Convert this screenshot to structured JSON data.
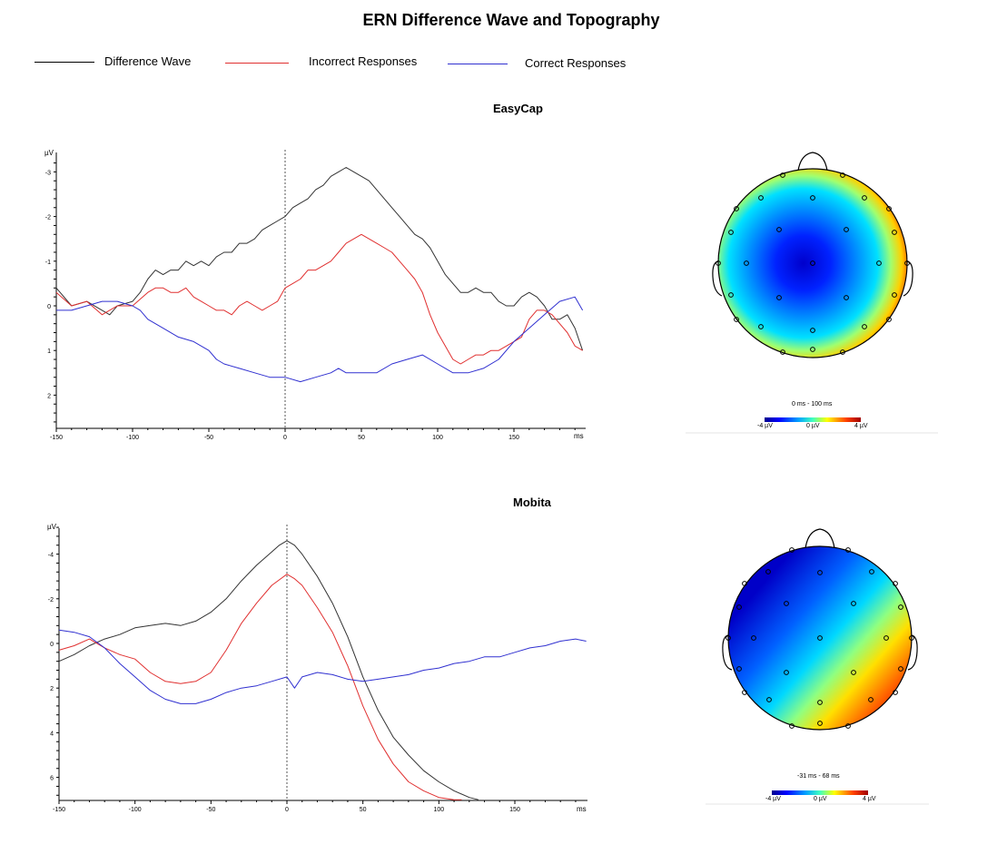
{
  "title": "ERN Difference Wave and Topography",
  "legend": [
    {
      "label": "Difference Wave",
      "color": "#000000"
    },
    {
      "label": "Incorrect Responses",
      "color": "#e03030"
    },
    {
      "label": "Correct Responses",
      "color": "#3030d0"
    }
  ],
  "chart_data": [
    {
      "type": "line",
      "title": "EasyCap",
      "ylabel": "µV",
      "xlabel": "ms",
      "xlim": [
        -150,
        197
      ],
      "ylim": [
        2.8,
        -3.3
      ],
      "y_axis_inverted": true,
      "x_ticks": [
        "-150",
        "-100",
        "-50",
        "0",
        "50",
        "100",
        "150"
      ],
      "y_ticks": [
        "-3",
        "-2",
        "-1",
        "0",
        "1",
        "2"
      ],
      "event_marker_x": 0,
      "series": [
        {
          "name": "Difference Wave",
          "color": "#333333",
          "x": [
            -150,
            -140,
            -130,
            -120,
            -115,
            -110,
            -100,
            -95,
            -90,
            -85,
            -80,
            -75,
            -70,
            -65,
            -60,
            -55,
            -50,
            -45,
            -40,
            -35,
            -30,
            -25,
            -20,
            -15,
            -10,
            -5,
            0,
            5,
            10,
            15,
            20,
            25,
            30,
            35,
            40,
            45,
            50,
            55,
            60,
            65,
            70,
            75,
            80,
            85,
            90,
            95,
            100,
            105,
            110,
            115,
            120,
            125,
            130,
            135,
            140,
            145,
            150,
            155,
            160,
            165,
            170,
            175,
            180,
            185,
            190,
            195
          ],
          "y": [
            -0.4,
            0,
            -0.1,
            0.1,
            0.2,
            0,
            -0.1,
            -0.3,
            -0.6,
            -0.8,
            -0.7,
            -0.8,
            -0.8,
            -1.0,
            -0.9,
            -1.0,
            -0.9,
            -1.1,
            -1.2,
            -1.2,
            -1.4,
            -1.4,
            -1.5,
            -1.7,
            -1.8,
            -1.9,
            -2.0,
            -2.2,
            -2.3,
            -2.4,
            -2.6,
            -2.7,
            -2.9,
            -3.0,
            -3.1,
            -3.0,
            -2.9,
            -2.8,
            -2.6,
            -2.4,
            -2.2,
            -2.0,
            -1.8,
            -1.6,
            -1.5,
            -1.3,
            -1.0,
            -0.7,
            -0.5,
            -0.3,
            -0.3,
            -0.4,
            -0.3,
            -0.3,
            -0.1,
            0,
            0,
            -0.2,
            -0.3,
            -0.2,
            0,
            0.3,
            0.3,
            0.2,
            0.5,
            1.0
          ]
        },
        {
          "name": "Incorrect Responses",
          "color": "#e03030",
          "x": [
            -150,
            -140,
            -130,
            -120,
            -110,
            -100,
            -90,
            -85,
            -80,
            -75,
            -70,
            -65,
            -60,
            -55,
            -50,
            -45,
            -40,
            -35,
            -30,
            -25,
            -20,
            -15,
            -10,
            -5,
            0,
            5,
            10,
            15,
            20,
            25,
            30,
            35,
            40,
            45,
            50,
            55,
            60,
            65,
            70,
            75,
            80,
            85,
            90,
            95,
            100,
            105,
            110,
            115,
            120,
            125,
            130,
            135,
            140,
            145,
            150,
            155,
            160,
            165,
            170,
            175,
            180,
            185,
            190,
            195
          ],
          "y": [
            -0.3,
            0,
            -0.1,
            0.2,
            0,
            0,
            -0.3,
            -0.4,
            -0.4,
            -0.3,
            -0.3,
            -0.4,
            -0.2,
            -0.1,
            0,
            0.1,
            0.1,
            0.2,
            0,
            -0.1,
            0,
            0.1,
            0,
            -0.1,
            -0.4,
            -0.5,
            -0.6,
            -0.8,
            -0.8,
            -0.9,
            -1.0,
            -1.2,
            -1.4,
            -1.5,
            -1.6,
            -1.5,
            -1.4,
            -1.3,
            -1.2,
            -1.0,
            -0.8,
            -0.6,
            -0.3,
            0.2,
            0.6,
            0.9,
            1.2,
            1.3,
            1.2,
            1.1,
            1.1,
            1.0,
            1.0,
            0.9,
            0.8,
            0.7,
            0.3,
            0.1,
            0.1,
            0.2,
            0.4,
            0.6,
            0.9,
            1.0
          ]
        },
        {
          "name": "Correct Responses",
          "color": "#3030d0",
          "x": [
            -150,
            -140,
            -130,
            -120,
            -110,
            -100,
            -95,
            -90,
            -80,
            -70,
            -60,
            -50,
            -45,
            -40,
            -30,
            -20,
            -10,
            0,
            10,
            20,
            30,
            35,
            40,
            50,
            60,
            70,
            80,
            90,
            100,
            110,
            120,
            130,
            140,
            150,
            160,
            170,
            180,
            190,
            195
          ],
          "y": [
            0.1,
            0.1,
            0,
            -0.1,
            -0.1,
            0,
            0.1,
            0.3,
            0.5,
            0.7,
            0.8,
            1.0,
            1.2,
            1.3,
            1.4,
            1.5,
            1.6,
            1.6,
            1.7,
            1.6,
            1.5,
            1.4,
            1.5,
            1.5,
            1.5,
            1.3,
            1.2,
            1.1,
            1.3,
            1.5,
            1.5,
            1.4,
            1.2,
            0.8,
            0.5,
            0.2,
            -0.1,
            -0.2,
            0.1
          ]
        }
      ]
    },
    {
      "type": "line",
      "title": "Mobita",
      "ylabel": "µV",
      "xlabel": "ms",
      "xlim": [
        -150,
        197
      ],
      "ylim": [
        7,
        -5.2
      ],
      "y_axis_inverted": true,
      "x_ticks": [
        "-150",
        "-100",
        "-50",
        "0",
        "50",
        "100",
        "150"
      ],
      "y_ticks": [
        "-4",
        "-2",
        "0",
        "2",
        "4",
        "6"
      ],
      "event_marker_x": 0,
      "series": [
        {
          "name": "Difference Wave",
          "color": "#333333",
          "x": [
            -150,
            -140,
            -130,
            -120,
            -110,
            -100,
            -90,
            -80,
            -70,
            -60,
            -50,
            -40,
            -30,
            -20,
            -10,
            -5,
            0,
            5,
            10,
            20,
            30,
            40,
            50,
            60,
            70,
            80,
            90,
            100,
            110,
            120,
            126
          ],
          "y": [
            0.8,
            0.5,
            0.1,
            -0.2,
            -0.4,
            -0.7,
            -0.8,
            -0.9,
            -0.8,
            -1.0,
            -1.4,
            -2.0,
            -2.8,
            -3.5,
            -4.1,
            -4.4,
            -4.6,
            -4.4,
            -4.0,
            -3.0,
            -1.8,
            -0.3,
            1.5,
            3.0,
            4.2,
            5.0,
            5.7,
            6.2,
            6.6,
            6.9,
            7.0
          ]
        },
        {
          "name": "Incorrect Responses",
          "color": "#e03030",
          "x": [
            -150,
            -140,
            -130,
            -120,
            -110,
            -100,
            -90,
            -80,
            -70,
            -60,
            -50,
            -40,
            -30,
            -20,
            -10,
            0,
            5,
            10,
            20,
            30,
            40,
            50,
            60,
            70,
            80,
            90,
            100,
            110,
            115
          ],
          "y": [
            0.3,
            0.1,
            -0.2,
            0.2,
            0.5,
            0.7,
            1.3,
            1.7,
            1.8,
            1.7,
            1.3,
            0.3,
            -0.9,
            -1.8,
            -2.6,
            -3.1,
            -2.9,
            -2.6,
            -1.6,
            -0.5,
            1.0,
            2.8,
            4.3,
            5.4,
            6.2,
            6.6,
            6.9,
            7.0,
            7.0
          ]
        },
        {
          "name": "Correct Responses",
          "color": "#3030d0",
          "x": [
            -150,
            -140,
            -130,
            -120,
            -110,
            -100,
            -90,
            -80,
            -70,
            -60,
            -50,
            -40,
            -30,
            -20,
            -10,
            0,
            5,
            10,
            20,
            30,
            40,
            50,
            60,
            70,
            80,
            90,
            100,
            110,
            120,
            130,
            140,
            150,
            160,
            170,
            180,
            190,
            197
          ],
          "y": [
            -0.6,
            -0.5,
            -0.3,
            0.2,
            0.9,
            1.5,
            2.1,
            2.5,
            2.7,
            2.7,
            2.5,
            2.2,
            2.0,
            1.9,
            1.7,
            1.5,
            2.0,
            1.5,
            1.3,
            1.4,
            1.6,
            1.7,
            1.6,
            1.5,
            1.4,
            1.2,
            1.1,
            0.9,
            0.8,
            0.6,
            0.6,
            0.4,
            0.2,
            0.1,
            -0.1,
            -0.2,
            -0.1
          ]
        }
      ]
    }
  ],
  "topomaps": [
    {
      "caption": "0 ms - 100 ms",
      "scale_labels": [
        "-4 µV",
        "0 µV",
        "4 µV"
      ]
    },
    {
      "caption": "-31 ms - 68 ms",
      "scale_labels": [
        "-4 µV",
        "0 µV",
        "4 µV"
      ]
    }
  ]
}
